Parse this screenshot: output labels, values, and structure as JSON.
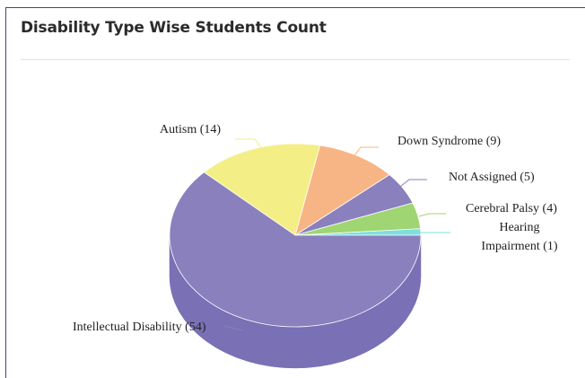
{
  "card": {
    "title": "Disability Type Wise Students Count"
  },
  "chart_data": {
    "type": "pie",
    "title": "",
    "style": "3d",
    "categories": [
      "Intellectual Disability",
      "Autism",
      "Down Syndrome",
      "Not Assigned",
      "Cerebral Palsy",
      "Hearing Impairment"
    ],
    "values": [
      54,
      14,
      9,
      5,
      4,
      1
    ],
    "labels": [
      "Intellectual Disability (54)",
      "Autism (14)",
      "Down Syndrome (9)",
      "Not Assigned (5)",
      "Cerebral Palsy (4)",
      [
        "Hearing",
        "Impairment (1)"
      ]
    ],
    "colors": [
      "#8a80bd",
      "#f4ee86",
      "#f7b585",
      "#8a80bd",
      "#9fd572",
      "#7fdedf"
    ],
    "side_colors": [
      "#7a70b5",
      "#cfc961",
      "#d69464",
      "#756baf",
      "#82b55a",
      "#62bebe"
    ]
  }
}
